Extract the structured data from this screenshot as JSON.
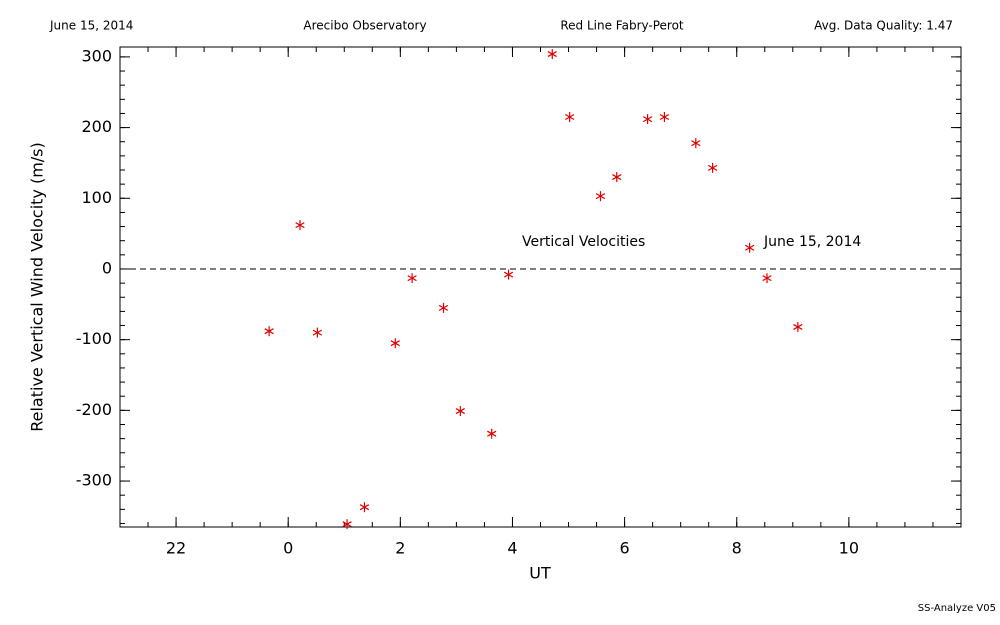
{
  "header": {
    "date": "June 15, 2014",
    "site": "Arecibo Observatory",
    "instrument": "Red Line Fabry-Perot",
    "quality": "Avg. Data Quality: 1.47"
  },
  "footer": "SS-Analyze V05",
  "chart_data": {
    "type": "scatter",
    "xlabel": "UT",
    "ylabel": "Relative Vertical Wind Velocity (m/s)",
    "annotations": [
      "Vertical Velocities",
      "June 15, 2014"
    ],
    "xlim": [
      -3,
      12
    ],
    "ylim": [
      -365,
      314
    ],
    "xticks": [
      {
        "value": -2,
        "label": "22"
      },
      0,
      2,
      4,
      6,
      8,
      10
    ],
    "yticks": [
      -300,
      -200,
      -100,
      0,
      100,
      200,
      300
    ],
    "hline": 0,
    "color": "#e00000",
    "x": [
      -0.34,
      0.21,
      0.52,
      1.05,
      1.36,
      1.91,
      2.21,
      2.77,
      3.07,
      3.63,
      3.93,
      4.71,
      5.02,
      5.57,
      5.86,
      6.41,
      6.71,
      7.27,
      7.57,
      8.23,
      8.54,
      9.09
    ],
    "values": [
      -88,
      62,
      -90,
      -361,
      -337,
      -105,
      -13,
      -55,
      -201,
      -233,
      -8,
      304,
      215,
      103,
      130,
      212,
      215,
      178,
      143,
      30,
      -13,
      -82
    ]
  }
}
